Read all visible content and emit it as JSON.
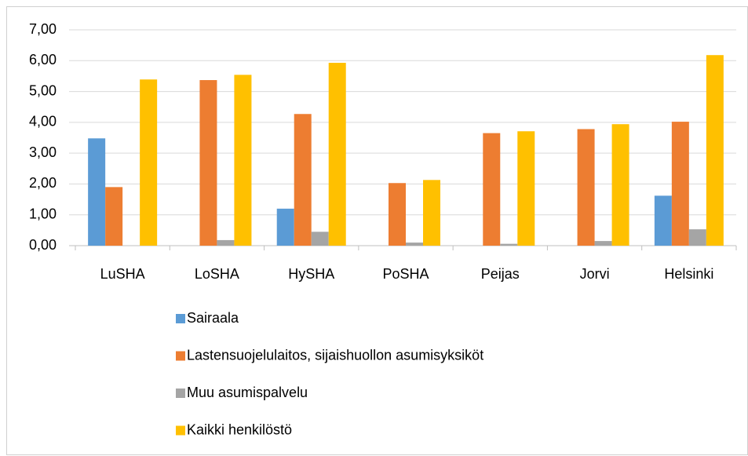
{
  "chart_data": {
    "type": "bar",
    "categories": [
      "LuSHA",
      "LoSHA",
      "HySHA",
      "PoSHA",
      "Peijas",
      "Jorvi",
      "Helsinki"
    ],
    "series": [
      {
        "name": "Sairaala",
        "color": "#5b9bd5",
        "values": [
          3.48,
          0,
          1.2,
          0,
          0,
          0,
          1.62
        ]
      },
      {
        "name": "Lastensuojelulaitos, sijaishuollon asumisyksiköt",
        "color": "#ed7d31",
        "values": [
          1.9,
          5.37,
          4.27,
          2.03,
          3.65,
          3.78,
          4.02
        ]
      },
      {
        "name": "Muu asumispalvelu",
        "color": "#a5a5a5",
        "values": [
          0,
          0.18,
          0.45,
          0.1,
          0.06,
          0.15,
          0.53
        ]
      },
      {
        "name": "Kaikki henkilöstö",
        "color": "#ffc000",
        "values": [
          5.39,
          5.54,
          5.93,
          2.13,
          3.71,
          3.94,
          6.18
        ]
      }
    ],
    "ylim": [
      0,
      7
    ],
    "yticks": [
      {
        "value": 0,
        "label": "0,00"
      },
      {
        "value": 1,
        "label": "1,00"
      },
      {
        "value": 2,
        "label": "2,00"
      },
      {
        "value": 3,
        "label": "3,00"
      },
      {
        "value": 4,
        "label": "4,00"
      },
      {
        "value": 5,
        "label": "5,00"
      },
      {
        "value": 6,
        "label": "6,00"
      },
      {
        "value": 7,
        "label": "7,00"
      }
    ],
    "grid": true,
    "legend": "bottom"
  }
}
